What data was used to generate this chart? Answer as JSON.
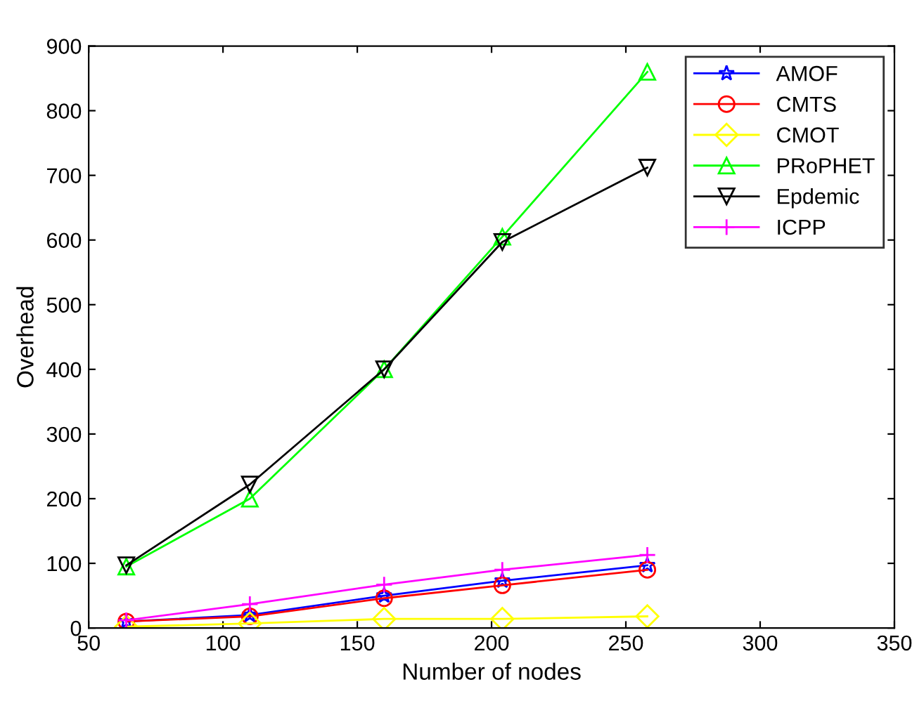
{
  "chart_data": {
    "type": "line",
    "xlabel": "Number of nodes",
    "ylabel": "Overhead",
    "x": [
      64,
      110,
      160,
      204,
      258
    ],
    "xlim": [
      50,
      350
    ],
    "xticks": [
      50,
      100,
      150,
      200,
      250,
      300,
      350
    ],
    "ylim": [
      0,
      900
    ],
    "yticks": [
      0,
      100,
      200,
      300,
      400,
      500,
      600,
      700,
      800,
      900
    ],
    "grid": false,
    "legend": "top right",
    "line_style": "solid",
    "series": [
      {
        "name": "AMOF",
        "color": "#0000ff",
        "marker": "star",
        "values": [
          10,
          20,
          50,
          73,
          97
        ]
      },
      {
        "name": "CMTS",
        "color": "#ff0000",
        "marker": "circle",
        "values": [
          10,
          18,
          46,
          66,
          90
        ]
      },
      {
        "name": "CMOT",
        "color": "#ffff00",
        "marker": "diamond",
        "values": [
          2,
          7,
          14,
          14,
          18
        ]
      },
      {
        "name": "PRoPHET",
        "color": "#00ff00",
        "marker": "triangle",
        "values": [
          95,
          200,
          400,
          605,
          860
        ]
      },
      {
        "name": "Epdemic",
        "color": "#000000",
        "marker": "triangle_down",
        "values": [
          97,
          222,
          400,
          597,
          712
        ]
      },
      {
        "name": "ICPP",
        "color": "#ff00ff",
        "marker": "plus",
        "values": [
          12,
          37,
          67,
          90,
          113
        ]
      }
    ]
  }
}
